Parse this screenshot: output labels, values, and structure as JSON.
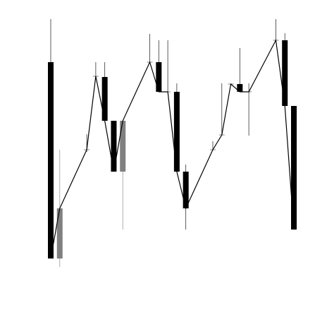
{
  "chart_data": {
    "type": "candlestick",
    "x": [
      0,
      1,
      4,
      5,
      6,
      7,
      8,
      11,
      12,
      13,
      14,
      15,
      18,
      19,
      20,
      21,
      22,
      25,
      26,
      27
    ],
    "open": [
      358,
      80,
      234,
      338,
      337,
      275,
      203,
      358,
      358,
      316,
      316,
      203,
      234,
      255,
      327,
      327,
      316,
      389,
      389,
      296
    ],
    "high": [
      419,
      234,
      256,
      358,
      358,
      275,
      275,
      398,
      389,
      389,
      328,
      213,
      246,
      328,
      327,
      378,
      328,
      419,
      399,
      296
    ],
    "low": [
      80,
      68,
      231,
      336,
      275,
      203,
      121,
      356,
      316,
      316,
      203,
      121,
      234,
      255,
      325,
      316,
      254,
      389,
      296,
      121
    ],
    "close": [
      80,
      151,
      234,
      338,
      275,
      203,
      275,
      358,
      316,
      316,
      203,
      151,
      234,
      255,
      327,
      316,
      316,
      389,
      296,
      121
    ],
    "up_color": "#808080",
    "down_color": "#000000",
    "line_color": "#000000",
    "xlim": [
      0,
      27
    ],
    "ylim": [
      0,
      446
    ]
  }
}
